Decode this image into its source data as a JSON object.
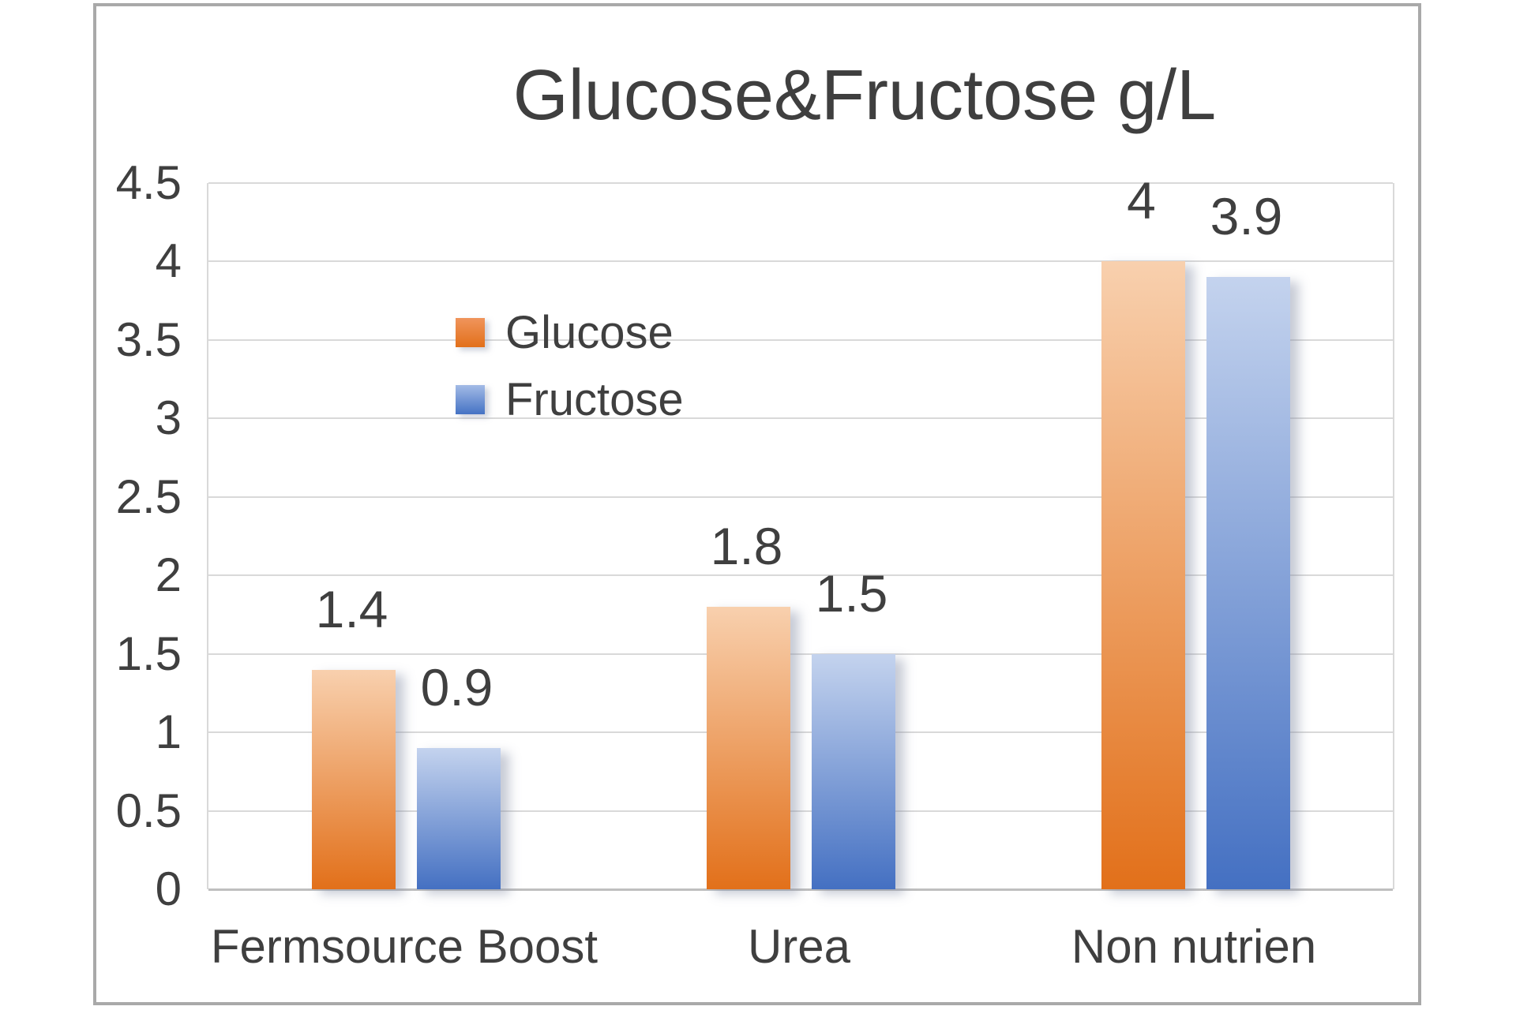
{
  "chart": {
    "frame_border_color": "#a9a9a9",
    "gridline_color": "#d9d9d9",
    "axis_line_color": "#bfbfbf",
    "text_color": "#3f3f3f",
    "background": "#ffffff"
  },
  "chart_data": {
    "type": "bar",
    "title": "Glucose&Fructose g/L",
    "categories": [
      "Fermsource Boost",
      "Urea",
      "Non nutrien"
    ],
    "series": [
      {
        "name": "Glucose",
        "values": [
          1.4,
          1.8,
          4
        ],
        "labels": [
          "1.4",
          "1.8",
          "4"
        ],
        "color": "#ED7D31",
        "bar_gradient_top": "#F8D0AE",
        "bar_gradient_bottom": "#E2701A",
        "legend_gradient_top": "#F0955C",
        "legend_gradient_bottom": "#E2701A"
      },
      {
        "name": "Fructose",
        "values": [
          0.9,
          1.5,
          3.9
        ],
        "labels": [
          "0.9",
          "1.5",
          "3.9"
        ],
        "color": "#4472C4",
        "bar_gradient_top": "#C4D3EE",
        "bar_gradient_bottom": "#4470C2",
        "legend_gradient_top": "#A3BBE6",
        "legend_gradient_bottom": "#4472C4"
      }
    ],
    "ylim": [
      0,
      4.5
    ],
    "ytick_step": 0.5,
    "yticks": [
      "4.5",
      "4",
      "3.5",
      "3",
      "2.5",
      "2",
      "1.5",
      "1",
      "0.5",
      "0"
    ],
    "grid": true,
    "legend": {
      "entries": [
        "Glucose",
        "Fructose"
      ],
      "position": "inside-left-middle"
    },
    "xlabel": "",
    "ylabel": ""
  }
}
